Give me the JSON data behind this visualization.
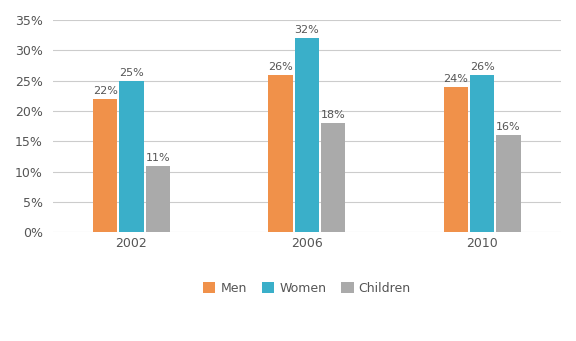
{
  "years": [
    "2002",
    "2006",
    "2010"
  ],
  "categories": [
    "Men",
    "Women",
    "Children"
  ],
  "values": {
    "Men": [
      22,
      26,
      24
    ],
    "Women": [
      25,
      32,
      26
    ],
    "Children": [
      11,
      18,
      16
    ]
  },
  "colors": {
    "Men": "#f0914a",
    "Women": "#3aafc9",
    "Children": "#aaaaaa"
  },
  "ylim": [
    0,
    35
  ],
  "yticks": [
    0,
    5,
    10,
    15,
    20,
    25,
    30,
    35
  ],
  "bar_width": 0.14,
  "background_color": "#ffffff",
  "grid_color": "#cccccc",
  "label_fontsize": 8,
  "tick_fontsize": 9,
  "legend_fontsize": 9
}
